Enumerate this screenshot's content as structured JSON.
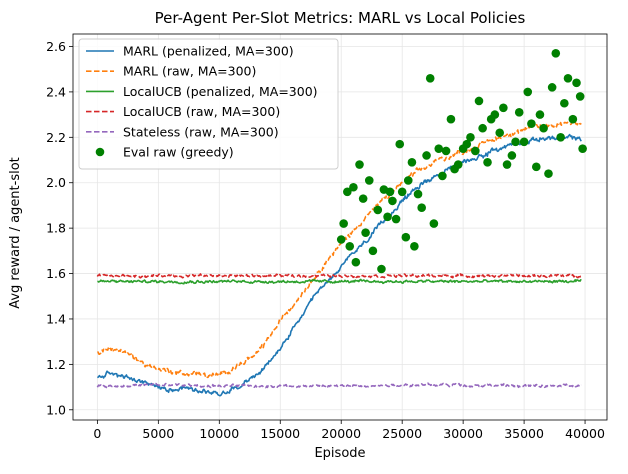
{
  "chart_data": {
    "type": "line",
    "title": "Per-Agent Per-Slot Metrics: MARL vs Local Policies",
    "xlabel": "Episode",
    "ylabel": "Avg reward / agent-slot",
    "xlim": [
      -2000,
      41800
    ],
    "ylim": [
      0.955,
      2.655
    ],
    "xticks": [
      0,
      5000,
      10000,
      15000,
      20000,
      25000,
      30000,
      35000,
      40000
    ],
    "yticks": [
      1.0,
      1.2,
      1.4,
      1.6,
      1.8,
      2.0,
      2.2,
      2.4,
      2.6
    ],
    "ytick_labels": [
      "1.0",
      "1.2",
      "1.4",
      "1.6",
      "1.8",
      "2.0",
      "2.2",
      "2.4",
      "2.6"
    ],
    "grid": true,
    "legend_position": "top-left",
    "series": [
      {
        "name": "MARL (penalized, MA=300)",
        "color": "#1f77b4",
        "style": "solid",
        "noise": 0.02,
        "x": [
          0,
          1000,
          2000,
          3000,
          4000,
          5000,
          6000,
          7000,
          8000,
          9000,
          10000,
          11000,
          12000,
          13000,
          14000,
          15000,
          16000,
          17000,
          18000,
          19000,
          20000,
          21000,
          22000,
          23000,
          24000,
          25000,
          26000,
          27000,
          28000,
          29000,
          30000,
          31000,
          32000,
          33000,
          34000,
          35000,
          36000,
          37000,
          38000,
          39000,
          39700
        ],
        "y": [
          1.14,
          1.16,
          1.15,
          1.13,
          1.12,
          1.1,
          1.09,
          1.1,
          1.09,
          1.08,
          1.07,
          1.09,
          1.12,
          1.15,
          1.2,
          1.27,
          1.35,
          1.43,
          1.51,
          1.57,
          1.63,
          1.69,
          1.74,
          1.8,
          1.86,
          1.92,
          1.97,
          2.01,
          2.04,
          2.06,
          2.09,
          2.11,
          2.13,
          2.15,
          2.17,
          2.18,
          2.19,
          2.2,
          2.19,
          2.2,
          2.19
        ]
      },
      {
        "name": "MARL (raw, MA=300)",
        "color": "#ff7f0e",
        "style": "dashed",
        "noise": 0.022,
        "x": [
          0,
          1000,
          2000,
          3000,
          4000,
          5000,
          6000,
          7000,
          8000,
          9000,
          10000,
          11000,
          12000,
          13000,
          14000,
          15000,
          16000,
          17000,
          18000,
          19000,
          20000,
          21000,
          22000,
          23000,
          24000,
          25000,
          26000,
          27000,
          28000,
          29000,
          30000,
          31000,
          32000,
          33000,
          34000,
          35000,
          36000,
          37000,
          38000,
          39000,
          39700
        ],
        "y": [
          1.25,
          1.27,
          1.26,
          1.23,
          1.2,
          1.18,
          1.17,
          1.16,
          1.16,
          1.15,
          1.15,
          1.18,
          1.21,
          1.24,
          1.31,
          1.39,
          1.46,
          1.53,
          1.6,
          1.67,
          1.73,
          1.79,
          1.85,
          1.9,
          1.95,
          2.0,
          2.04,
          2.07,
          2.1,
          2.12,
          2.14,
          2.16,
          2.18,
          2.2,
          2.22,
          2.23,
          2.25,
          2.25,
          2.26,
          2.27,
          2.26
        ]
      },
      {
        "name": "LocalUCB (penalized, MA=300)",
        "color": "#2ca02c",
        "style": "solid",
        "noise": 0.012,
        "x": [
          0,
          39700
        ],
        "y": [
          1.565,
          1.565
        ]
      },
      {
        "name": "LocalUCB (raw, MA=300)",
        "color": "#d62728",
        "style": "dashed",
        "noise": 0.012,
        "x": [
          0,
          39700
        ],
        "y": [
          1.59,
          1.59
        ]
      },
      {
        "name": "Stateless (raw, MA=300)",
        "color": "#9467bd",
        "style": "dashed",
        "noise": 0.012,
        "x": [
          0,
          5000,
          10000,
          15000,
          20000,
          25000,
          30000,
          35000,
          39700
        ],
        "y": [
          1.105,
          1.11,
          1.105,
          1.105,
          1.105,
          1.11,
          1.11,
          1.105,
          1.105
        ]
      }
    ],
    "scatter": {
      "name": "Eval raw (greedy)",
      "color": "#008000",
      "x": [
        20000,
        20200,
        20500,
        20700,
        21000,
        21200,
        21500,
        21800,
        22000,
        22300,
        22600,
        23000,
        23300,
        23500,
        23800,
        24000,
        24200,
        24500,
        24800,
        25000,
        25300,
        25500,
        25800,
        26000,
        26300,
        26600,
        27000,
        27300,
        27600,
        28000,
        28300,
        28600,
        29000,
        29300,
        29600,
        30000,
        30300,
        30600,
        31000,
        31300,
        31600,
        32000,
        32300,
        32600,
        33000,
        33300,
        33600,
        34000,
        34300,
        34600,
        35000,
        35300,
        35600,
        36000,
        36300,
        36600,
        37000,
        37300,
        37600,
        38000,
        38300,
        38600,
        39000,
        39300,
        39600,
        39800
      ],
      "y": [
        1.75,
        1.82,
        1.96,
        1.72,
        1.98,
        1.65,
        2.08,
        1.93,
        1.78,
        2.01,
        1.7,
        1.88,
        1.62,
        1.97,
        1.85,
        1.96,
        1.92,
        1.84,
        2.17,
        1.96,
        1.76,
        2.01,
        2.09,
        1.72,
        1.95,
        1.89,
        2.12,
        2.46,
        1.82,
        2.15,
        2.03,
        2.14,
        2.28,
        2.06,
        2.08,
        2.15,
        2.17,
        2.2,
        2.14,
        2.36,
        2.24,
        2.09,
        2.28,
        2.3,
        2.22,
        2.33,
        2.08,
        2.12,
        2.18,
        2.31,
        2.18,
        2.4,
        2.26,
        2.07,
        2.3,
        2.24,
        2.04,
        2.42,
        2.57,
        2.2,
        2.35,
        2.46,
        2.28,
        2.44,
        2.38,
        2.15
      ]
    },
    "legend": [
      {
        "label": "MARL (penalized, MA=300)",
        "color": "#1f77b4",
        "kind": "solid"
      },
      {
        "label": "MARL (raw, MA=300)",
        "color": "#ff7f0e",
        "kind": "dashed"
      },
      {
        "label": "LocalUCB (penalized, MA=300)",
        "color": "#2ca02c",
        "kind": "solid"
      },
      {
        "label": "LocalUCB (raw, MA=300)",
        "color": "#d62728",
        "kind": "dashed"
      },
      {
        "label": "Stateless (raw, MA=300)",
        "color": "#9467bd",
        "kind": "dashed"
      },
      {
        "label": "Eval raw (greedy)",
        "color": "#008000",
        "kind": "marker"
      }
    ]
  }
}
